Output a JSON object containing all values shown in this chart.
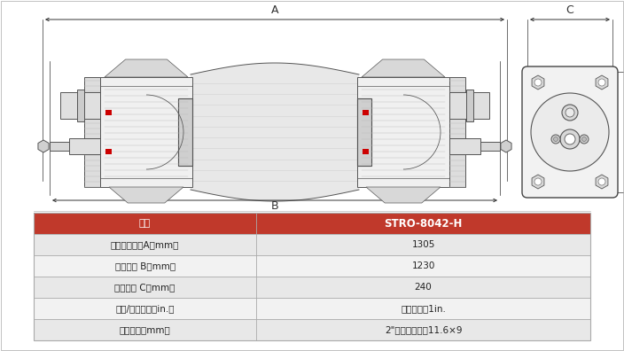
{
  "table_headers": [
    "型号",
    "STRO-8042-H"
  ],
  "table_rows": [
    [
      "膜组件拉杆长A（mm）",
      "1305"
    ],
    [
      "法兰间距 B（mm）",
      "1230"
    ],
    [
      "法兰宽度 C（mm）",
      "240"
    ],
    [
      "进水/浓水接口（in.）",
      "卡箍式接口1in."
    ],
    [
      "产水接口（mm）",
      "2\"软管快速接口11.6×9"
    ]
  ],
  "header_bg": "#C0392B",
  "header_text_color": "#FFFFFF",
  "row_bg_odd": "#E8E8E8",
  "row_bg_even": "#F2F2F2",
  "row_text_color": "#222222",
  "border_color": "#AAAAAA",
  "bg_color": "#FFFFFF",
  "dim_color": "#333333",
  "line_color": "#555555",
  "light_gray": "#D8D8D8",
  "mid_gray": "#BBBBBB",
  "hatch_color": "#AAAAAA"
}
